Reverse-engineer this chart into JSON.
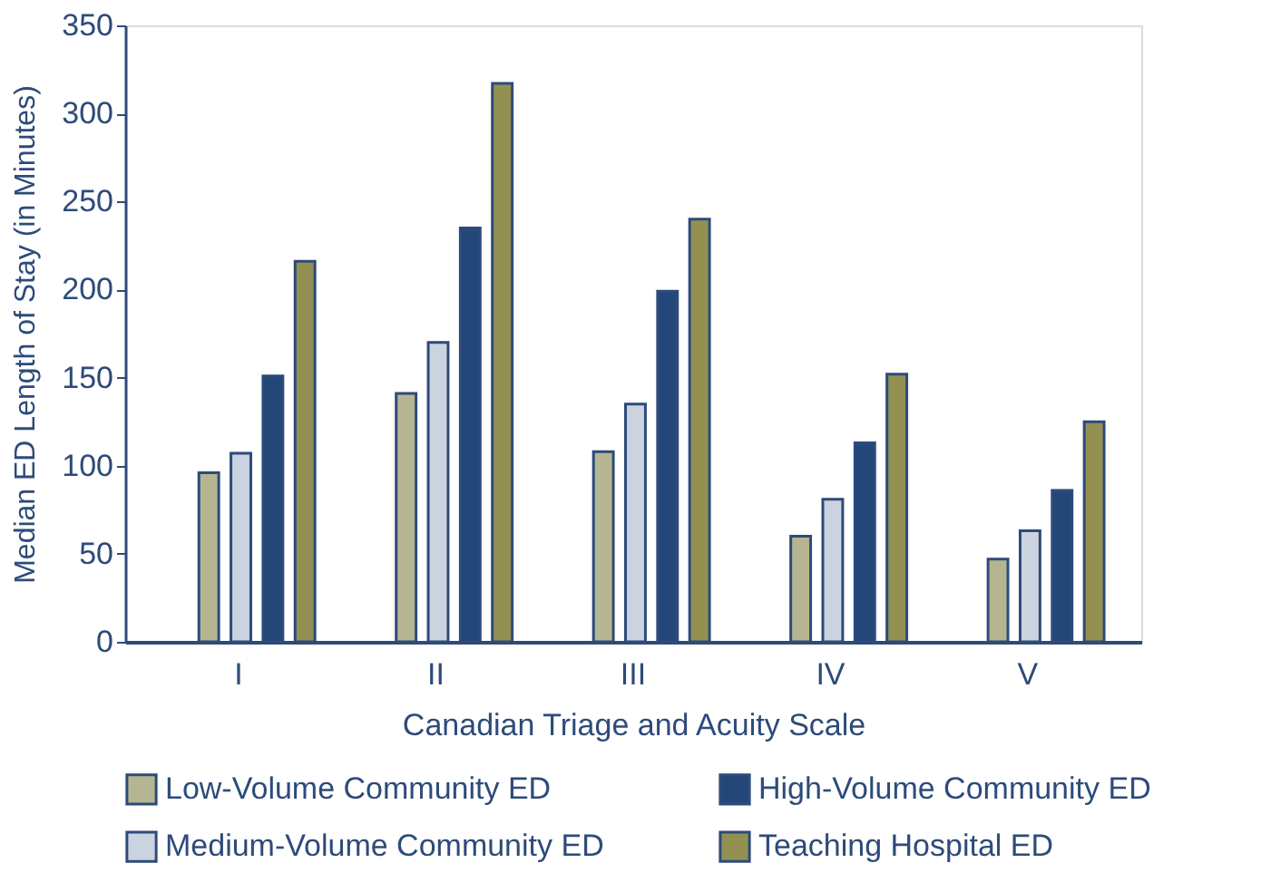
{
  "chart_data": {
    "type": "bar",
    "xlabel": "Canadian Triage and Acuity Scale",
    "ylabel": "Median ED Length of Stay (in Minutes)",
    "categories": [
      "I",
      "II",
      "III",
      "IV",
      "V"
    ],
    "series": [
      {
        "name": "Low-Volume Community ED",
        "color": "#b5b592",
        "values": [
          96,
          141,
          108,
          60,
          47
        ]
      },
      {
        "name": "Medium-Volume Community ED",
        "color": "#ccd3e0",
        "values": [
          107,
          170,
          135,
          81,
          63
        ]
      },
      {
        "name": "High-Volume Community ED",
        "color": "#24477a",
        "values": [
          151,
          235,
          199,
          113,
          86
        ]
      },
      {
        "name": "Teaching Hospital ED",
        "color": "#939152",
        "values": [
          216,
          317,
          240,
          152,
          125
        ]
      }
    ],
    "ylim": [
      0,
      350
    ],
    "yticks": [
      0,
      50,
      100,
      150,
      200,
      250,
      300,
      350
    ],
    "grid": false,
    "legend": "bottom"
  }
}
